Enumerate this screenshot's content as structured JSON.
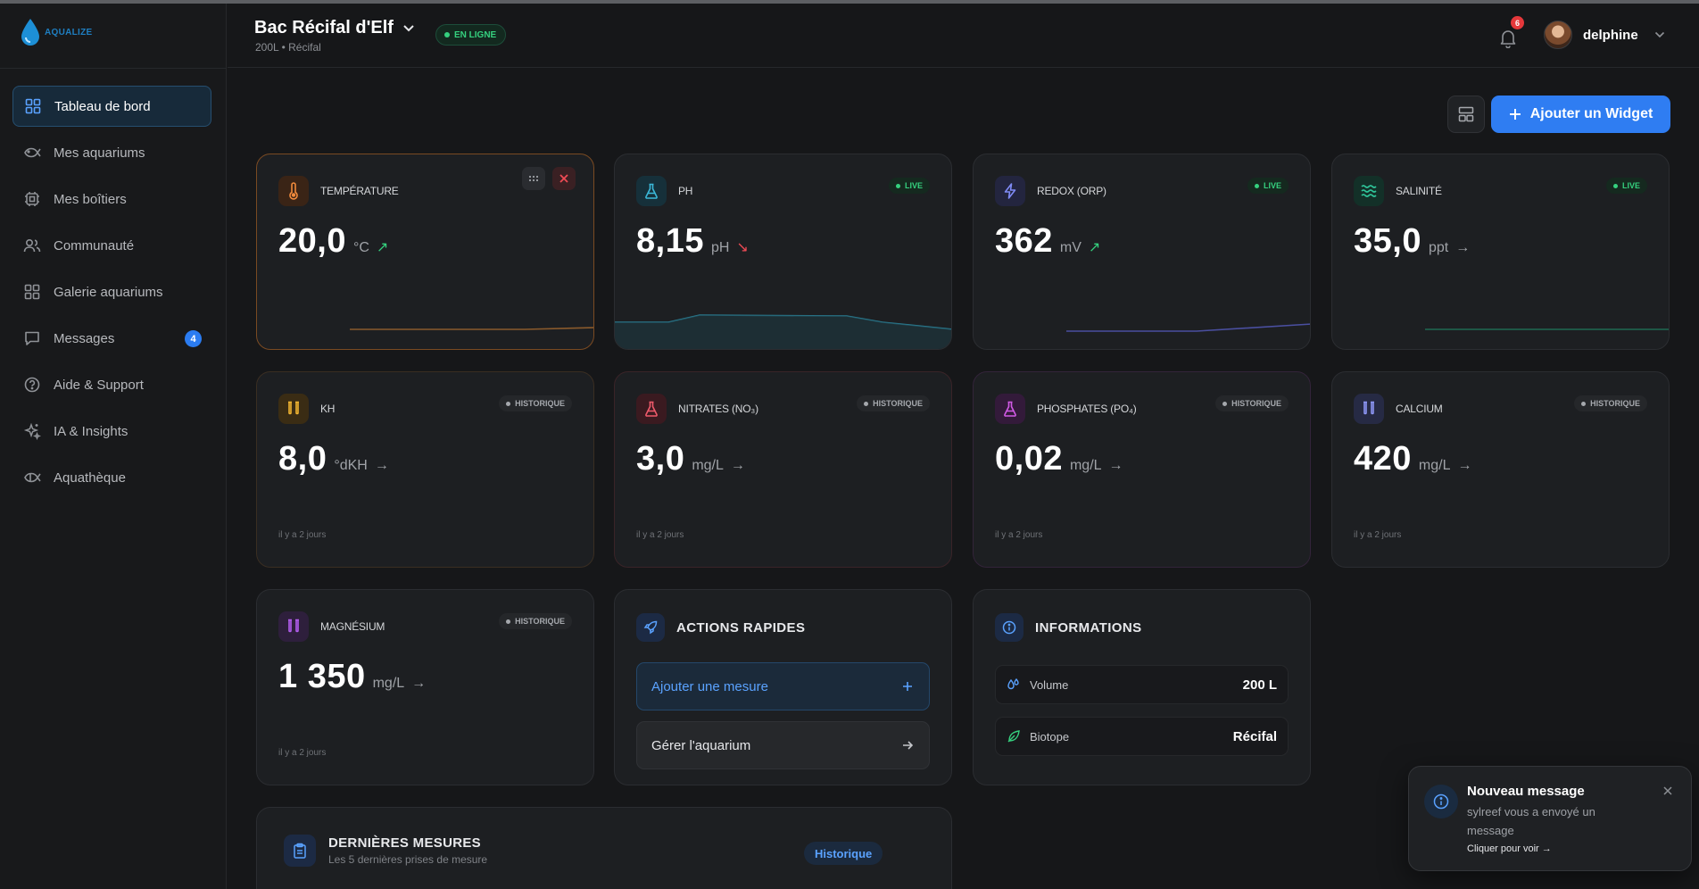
{
  "app": {
    "logo_text": "AQUALIZE"
  },
  "sidebar": {
    "items": [
      {
        "label": "Tableau de bord",
        "icon": "dashboard-icon"
      },
      {
        "label": "Mes aquariums",
        "icon": "fish-icon"
      },
      {
        "label": "Mes boîtiers",
        "icon": "chip-icon"
      },
      {
        "label": "Communauté",
        "icon": "users-icon"
      },
      {
        "label": "Galerie aquariums",
        "icon": "gallery-icon"
      },
      {
        "label": "Messages",
        "icon": "message-icon",
        "badge": "4"
      },
      {
        "label": "Aide & Support",
        "icon": "help-icon"
      },
      {
        "label": "IA & Insights",
        "icon": "sparkles-icon"
      },
      {
        "label": "Aquathèque",
        "icon": "fish-book-icon"
      }
    ]
  },
  "header": {
    "tank_name": "Bac Récifal d'Elf",
    "tank_sub": "200L • Récifal",
    "status": "EN LIGNE",
    "notifications": "6",
    "user": "delphine"
  },
  "toolbar": {
    "add_widget": "Ajouter un Widget"
  },
  "colors": {
    "accent": "#2f7df2",
    "live": "#35d07e",
    "trend_up": "#35d07e",
    "trend_down": "#ef4b55"
  },
  "cards": [
    {
      "label": "TEMPÉRATURE",
      "value": "20,0",
      "unit": "°C",
      "trend": "↗",
      "badge": ""
    },
    {
      "label": "PH",
      "value": "8,15",
      "unit": "pH",
      "trend": "↘",
      "badge": "LIVE"
    },
    {
      "label": "REDOX (ORP)",
      "value": "362",
      "unit": "mV",
      "trend": "↗",
      "badge": "LIVE"
    },
    {
      "label": "SALINITÉ",
      "value": "35,0",
      "unit": "ppt",
      "trend": "→",
      "badge": "LIVE"
    },
    {
      "label": "KH",
      "value": "8,0",
      "unit": "°dKH",
      "trend": "→",
      "badge": "HISTORIQUE",
      "time": "il y a 2 jours"
    },
    {
      "label": "NITRATES (NO₃)",
      "value": "3,0",
      "unit": "mg/L",
      "trend": "→",
      "badge": "HISTORIQUE",
      "time": "il y a 2 jours"
    },
    {
      "label": "PHOSPHATES (PO₄)",
      "value": "0,02",
      "unit": "mg/L",
      "trend": "→",
      "badge": "HISTORIQUE",
      "time": "il y a 2 jours"
    },
    {
      "label": "CALCIUM",
      "value": "420",
      "unit": "mg/L",
      "trend": "→",
      "badge": "HISTORIQUE",
      "time": "il y a 2 jours"
    },
    {
      "label": "MAGNÉSIUM",
      "value": "1 350",
      "unit": "mg/L",
      "trend": "→",
      "badge": "HISTORIQUE",
      "time": "il y a 2 jours"
    }
  ],
  "quick_actions": {
    "title": "ACTIONS RAPIDES",
    "add_measure": "Ajouter une mesure",
    "manage": "Gérer l'aquarium"
  },
  "informations": {
    "title": "INFORMATIONS",
    "rows": [
      {
        "label": "Volume",
        "value": "200 L"
      },
      {
        "label": "Biotope",
        "value": "Récifal"
      }
    ]
  },
  "recent": {
    "title": "DERNIÈRES MESURES",
    "subtitle": "Les 5 dernières prises de mesure",
    "history": "Historique"
  },
  "toast": {
    "title": "Nouveau message",
    "body": "sylreef vous a envoyé un message",
    "link": "Cliquer pour voir →"
  }
}
